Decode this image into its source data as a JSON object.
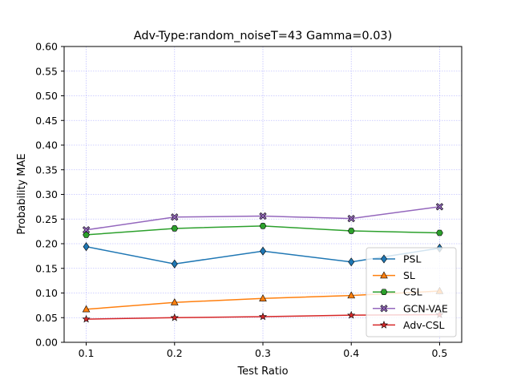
{
  "chart_data": {
    "type": "line",
    "title": "Adv-Type:random_noiseT=43 Gamma=0.03)",
    "xlabel": "Test Ratio",
    "ylabel": "Probability MAE",
    "x": [
      0.1,
      0.2,
      0.3,
      0.4,
      0.5
    ],
    "x_tick_labels": [
      "0.1",
      "0.2",
      "0.3",
      "0.4",
      "0.5"
    ],
    "xlim": [
      0.075,
      0.525
    ],
    "ylim": [
      0.0,
      0.6
    ],
    "y_ticks": [
      0.0,
      0.05,
      0.1,
      0.15,
      0.2,
      0.25,
      0.3,
      0.35,
      0.4,
      0.45,
      0.5,
      0.55,
      0.6
    ],
    "y_tick_labels": [
      "0.00",
      "0.05",
      "0.10",
      "0.15",
      "0.20",
      "0.25",
      "0.30",
      "0.35",
      "0.40",
      "0.45",
      "0.50",
      "0.55",
      "0.60"
    ],
    "grid": true,
    "grid_color": "#9999ff",
    "legend_position": "bottom-right",
    "series": [
      {
        "name": "PSL",
        "color": "#1f77b4",
        "marker": "diamond",
        "values": [
          0.194,
          0.159,
          0.185,
          0.163,
          0.191
        ]
      },
      {
        "name": "SL",
        "color": "#ff7f0e",
        "marker": "triangle",
        "values": [
          0.067,
          0.081,
          0.089,
          0.095,
          0.104
        ]
      },
      {
        "name": "CSL",
        "color": "#2ca02c",
        "marker": "hexagon",
        "values": [
          0.218,
          0.231,
          0.236,
          0.226,
          0.222
        ]
      },
      {
        "name": "GCN-VAE",
        "color": "#9467bd",
        "marker": "x-filled",
        "values": [
          0.228,
          0.254,
          0.256,
          0.251,
          0.275
        ]
      },
      {
        "name": "Adv-CSL",
        "color": "#d62728",
        "marker": "star",
        "values": [
          0.047,
          0.05,
          0.052,
          0.055,
          0.056
        ]
      }
    ]
  }
}
